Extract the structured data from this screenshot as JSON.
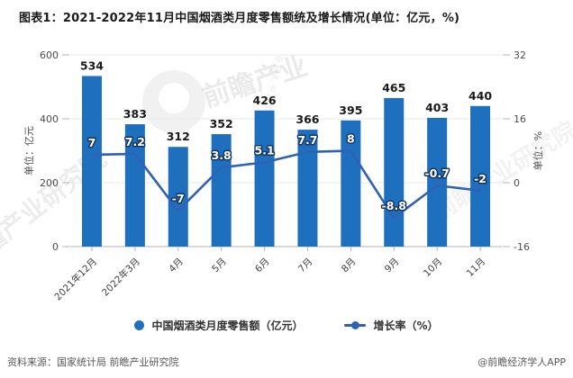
{
  "title": "图表1：2021-2022年11月中国烟酒类月度零售额统及增长情况(单位：亿元，%)",
  "chart_data": {
    "type": "bar",
    "categories": [
      "2021年12月",
      "2022年3月",
      "4月",
      "5月",
      "6月",
      "7月",
      "8月",
      "9月",
      "10月",
      "11月"
    ],
    "series": [
      {
        "name": "中国烟酒类月度零售额（亿元）",
        "type": "bar",
        "axis": "left",
        "values": [
          534,
          383,
          312,
          352,
          426,
          366,
          395,
          465,
          403,
          440
        ],
        "color": "#1f6fbf"
      },
      {
        "name": "增长率（%）",
        "type": "line",
        "axis": "right",
        "values": [
          7,
          7.2,
          -7,
          3.8,
          5.1,
          7.7,
          8,
          -8.8,
          -0.7,
          -2
        ],
        "color": "#2f62b4"
      }
    ],
    "left_axis": {
      "title": "单位：亿元",
      "ticks": [
        0,
        200,
        400,
        600
      ],
      "min": 0,
      "max": 600
    },
    "right_axis": {
      "title": "单位：%",
      "ticks": [
        -16,
        0,
        16,
        32
      ],
      "min": -16,
      "max": 32
    },
    "grid": true,
    "legend_position": "bottom"
  },
  "legend": {
    "items": [
      {
        "label": "中国烟酒类月度零售额（亿元）",
        "marker": "circle"
      },
      {
        "label": "增长率（%）",
        "marker": "line-dot"
      }
    ]
  },
  "footer": {
    "source": "资料来源：国家统计局 前瞻产业研究院",
    "credit": "@前瞻经济学人APP"
  },
  "watermarks": {
    "center_text": "前瞻产业",
    "center_sub": "中国产业咨询服务机构",
    "left_text": "前瞻产业研究院",
    "right_text": "前瞻产业研究院"
  }
}
